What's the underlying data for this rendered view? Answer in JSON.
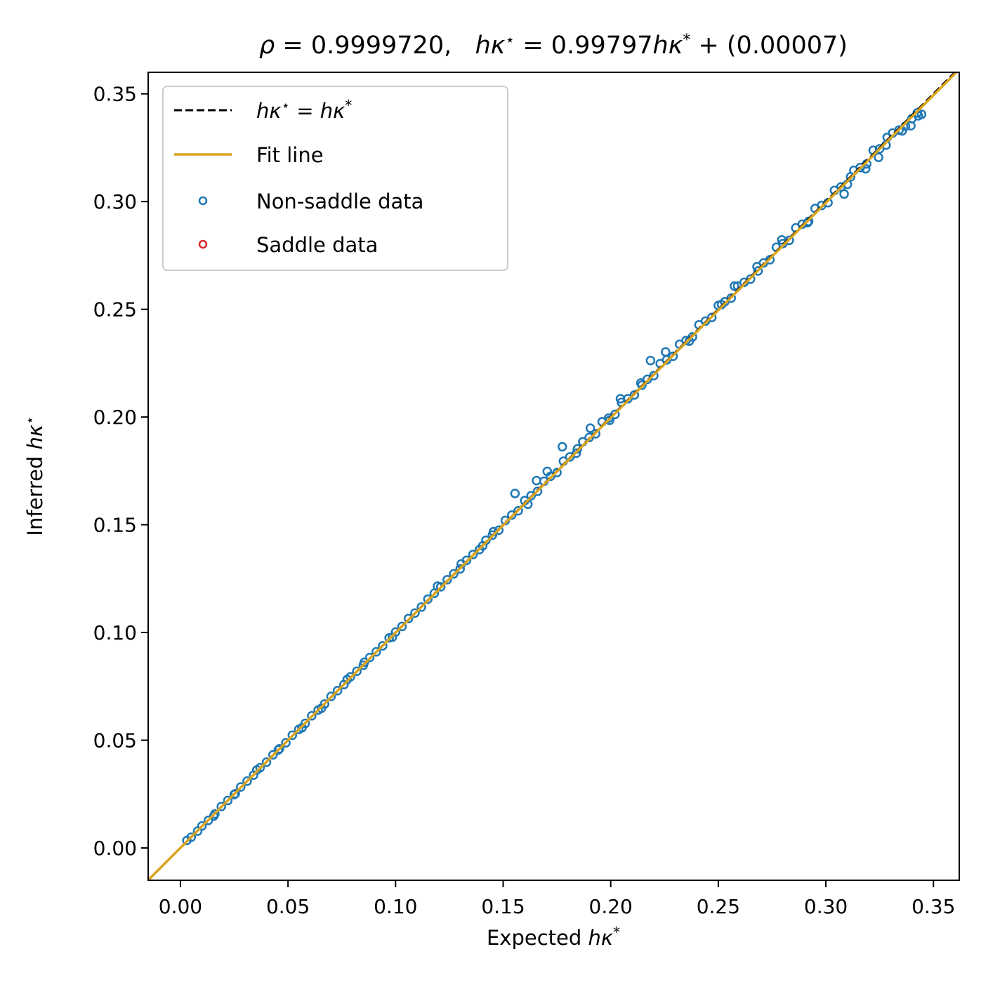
{
  "chart_data": {
    "type": "scatter",
    "title": {
      "rho_symbol": "ρ",
      "rho_text": " = 0.9999720,   ",
      "lhs_var": "hκ",
      "lhs_sup": "⋆",
      "eq_text": " = 0.99797",
      "rhs_var": "hκ",
      "rhs_sup": "*",
      "tail_text": " + (0.00007)"
    },
    "xlabel": {
      "text": "Expected ",
      "var": "hκ",
      "sup": "*"
    },
    "ylabel": {
      "text": "Inferred ",
      "var": "hκ",
      "sup": "⋆"
    },
    "xlim": [
      -0.015,
      0.362
    ],
    "ylim": [
      -0.015,
      0.36
    ],
    "x_ticks": [
      "0.00",
      "0.05",
      "0.10",
      "0.15",
      "0.20",
      "0.25",
      "0.30",
      "0.35"
    ],
    "y_ticks": [
      "0.00",
      "0.05",
      "0.10",
      "0.15",
      "0.20",
      "0.25",
      "0.30",
      "0.35"
    ],
    "grid": false,
    "legend_position": "top-left",
    "legend": [
      {
        "key": "identity",
        "label_var": "hκ",
        "label_sup1": "⋆",
        "label_mid": " = ",
        "label_var2": "hκ",
        "label_sup2": "*"
      },
      {
        "key": "fit",
        "label": "Fit line"
      },
      {
        "key": "nonsaddle",
        "label": "Non-saddle data"
      },
      {
        "key": "saddle",
        "label": "Saddle data"
      }
    ],
    "lines": {
      "identity": {
        "slope": 1.0,
        "intercept": 0.0,
        "color": "#000000",
        "style": "dashed"
      },
      "fit": {
        "slope": 0.99797,
        "intercept": 7e-05,
        "color": "#DAA520",
        "style": "solid"
      }
    },
    "series": [
      {
        "name": "Non-saddle data",
        "color": "#1F77B4",
        "points": [
          [
            0.003,
            0.0035
          ],
          [
            0.005,
            0.005
          ],
          [
            0.008,
            0.0078
          ],
          [
            0.01,
            0.0102
          ],
          [
            0.013,
            0.0128
          ],
          [
            0.016,
            0.0158
          ],
          [
            0.019,
            0.0192
          ],
          [
            0.022,
            0.022
          ],
          [
            0.025,
            0.0248
          ],
          [
            0.028,
            0.0283
          ],
          [
            0.031,
            0.031
          ],
          [
            0.034,
            0.0338
          ],
          [
            0.037,
            0.0372
          ],
          [
            0.04,
            0.0398
          ],
          [
            0.043,
            0.0432
          ],
          [
            0.046,
            0.046
          ],
          [
            0.049,
            0.0488
          ],
          [
            0.052,
            0.0523
          ],
          [
            0.055,
            0.055
          ],
          [
            0.058,
            0.0578
          ],
          [
            0.061,
            0.0613
          ],
          [
            0.064,
            0.064
          ],
          [
            0.067,
            0.0668
          ],
          [
            0.07,
            0.0703
          ],
          [
            0.073,
            0.073
          ],
          [
            0.076,
            0.0758
          ],
          [
            0.079,
            0.0794
          ],
          [
            0.082,
            0.082
          ],
          [
            0.085,
            0.0848
          ],
          [
            0.088,
            0.0884
          ],
          [
            0.091,
            0.091
          ],
          [
            0.094,
            0.0938
          ],
          [
            0.097,
            0.0975
          ],
          [
            0.1,
            0.1002
          ],
          [
            0.103,
            0.1028
          ],
          [
            0.106,
            0.1065
          ],
          [
            0.109,
            0.109
          ],
          [
            0.112,
            0.1118
          ],
          [
            0.115,
            0.1155
          ],
          [
            0.118,
            0.1182
          ],
          [
            0.121,
            0.1212
          ],
          [
            0.124,
            0.1245
          ],
          [
            0.127,
            0.1272
          ],
          [
            0.13,
            0.1295
          ],
          [
            0.133,
            0.1335
          ],
          [
            0.136,
            0.1362
          ],
          [
            0.139,
            0.1385
          ],
          [
            0.142,
            0.1428
          ],
          [
            0.145,
            0.1452
          ],
          [
            0.148,
            0.1475
          ],
          [
            0.151,
            0.152
          ],
          [
            0.154,
            0.1545
          ],
          [
            0.157,
            0.1565
          ],
          [
            0.16,
            0.1612
          ],
          [
            0.163,
            0.1635
          ],
          [
            0.166,
            0.1655
          ],
          [
            0.169,
            0.1702
          ],
          [
            0.172,
            0.1725
          ],
          [
            0.175,
            0.1742
          ],
          [
            0.178,
            0.1795
          ],
          [
            0.181,
            0.1815
          ],
          [
            0.184,
            0.1832
          ],
          [
            0.187,
            0.1885
          ],
          [
            0.19,
            0.1905
          ],
          [
            0.193,
            0.1922
          ],
          [
            0.196,
            0.1978
          ],
          [
            0.199,
            0.1995
          ],
          [
            0.202,
            0.2012
          ],
          [
            0.205,
            0.2068
          ],
          [
            0.208,
            0.2085
          ],
          [
            0.211,
            0.2102
          ],
          [
            0.214,
            0.2158
          ],
          [
            0.217,
            0.2175
          ],
          [
            0.22,
            0.2192
          ],
          [
            0.223,
            0.2248
          ],
          [
            0.226,
            0.2265
          ],
          [
            0.229,
            0.2282
          ],
          [
            0.232,
            0.2338
          ],
          [
            0.235,
            0.2355
          ],
          [
            0.238,
            0.2372
          ],
          [
            0.241,
            0.2428
          ],
          [
            0.244,
            0.2445
          ],
          [
            0.247,
            0.2462
          ],
          [
            0.25,
            0.2518
          ],
          [
            0.253,
            0.2535
          ],
          [
            0.256,
            0.2552
          ],
          [
            0.259,
            0.2608
          ],
          [
            0.262,
            0.2625
          ],
          [
            0.265,
            0.264
          ],
          [
            0.268,
            0.2698
          ],
          [
            0.271,
            0.2715
          ],
          [
            0.274,
            0.273
          ],
          [
            0.277,
            0.2788
          ],
          [
            0.28,
            0.2805
          ],
          [
            0.283,
            0.282
          ],
          [
            0.286,
            0.2878
          ],
          [
            0.289,
            0.2895
          ],
          [
            0.292,
            0.2908
          ],
          [
            0.295,
            0.2968
          ],
          [
            0.298,
            0.2982
          ],
          [
            0.301,
            0.2995
          ],
          [
            0.304,
            0.3052
          ],
          [
            0.307,
            0.3068
          ],
          [
            0.31,
            0.308
          ],
          [
            0.313,
            0.3145
          ],
          [
            0.316,
            0.3158
          ],
          [
            0.319,
            0.3175
          ],
          [
            0.322,
            0.3238
          ],
          [
            0.325,
            0.3245
          ],
          [
            0.328,
            0.3262
          ],
          [
            0.331,
            0.3318
          ],
          [
            0.334,
            0.3332
          ],
          [
            0.337,
            0.335
          ],
          [
            0.34,
            0.3385
          ],
          [
            0.343,
            0.3398
          ],
          [
            0.0155,
            0.0148
          ],
          [
            0.0355,
            0.0362
          ],
          [
            0.0565,
            0.0558
          ],
          [
            0.0775,
            0.0782
          ],
          [
            0.0985,
            0.0978
          ],
          [
            0.1195,
            0.1215
          ],
          [
            0.1405,
            0.1402
          ],
          [
            0.1555,
            0.1645
          ],
          [
            0.1615,
            0.1595
          ],
          [
            0.1775,
            0.1862
          ],
          [
            0.1845,
            0.1852
          ],
          [
            0.1995,
            0.1985
          ],
          [
            0.2185,
            0.2262
          ],
          [
            0.2255,
            0.2302
          ],
          [
            0.2365,
            0.2352
          ],
          [
            0.2575,
            0.2608
          ],
          [
            0.2685,
            0.2678
          ],
          [
            0.2795,
            0.2822
          ],
          [
            0.2915,
            0.2902
          ],
          [
            0.3085,
            0.3035
          ],
          [
            0.3115,
            0.3115
          ],
          [
            0.3185,
            0.3152
          ],
          [
            0.3245,
            0.3205
          ],
          [
            0.3285,
            0.3298
          ],
          [
            0.3355,
            0.3328
          ],
          [
            0.3395,
            0.3352
          ],
          [
            0.3425,
            0.3412
          ],
          [
            0.3445,
            0.3405
          ],
          [
            0.2045,
            0.2085
          ],
          [
            0.1655,
            0.1705
          ],
          [
            0.0655,
            0.0648
          ],
          [
            0.0455,
            0.0455
          ],
          [
            0.1305,
            0.1318
          ],
          [
            0.1905,
            0.1948
          ],
          [
            0.2515,
            0.2522
          ],
          [
            0.2145,
            0.2148
          ],
          [
            0.1705,
            0.1748
          ],
          [
            0.1455,
            0.1468
          ],
          [
            0.0855,
            0.0862
          ],
          [
            0.0255,
            0.0252
          ]
        ]
      },
      {
        "name": "Saddle data",
        "color": "#D62728",
        "points": []
      }
    ]
  }
}
